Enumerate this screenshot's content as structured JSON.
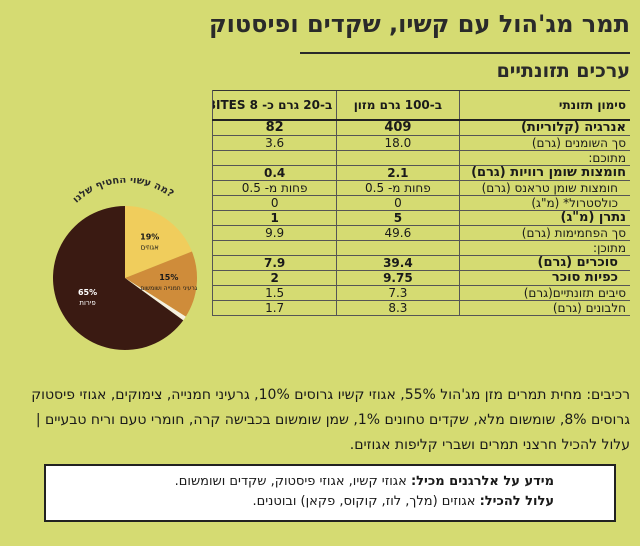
{
  "title": "תמר מג'הול עם קשיו, שקדים ופיסטוק",
  "subtitle": "ערכים תזונתיים",
  "table": {
    "headers": [
      "סימון תזונתי",
      "ב-100 גרם מזון",
      "ב-20 גרם כ- BITES 8"
    ],
    "rows": [
      {
        "label": "אנרגיה (קלוריות)",
        "v100": "409",
        "v20": "82",
        "style": "big b heavy"
      },
      {
        "label": "סך השומנים (גרם)",
        "v100": "18.0",
        "v20": "3.6",
        "style": ""
      },
      {
        "label": "מתוכם:",
        "v100": "",
        "v20": "",
        "style": "note"
      },
      {
        "label": "חומצות שומן רוויות (גרם)",
        "v100": "2.1",
        "v20": "0.4",
        "style": "b"
      },
      {
        "label": "חומצות שומן טראנס (גרם)",
        "v100": "פחות מ- 0.5",
        "v20": "פחות מ- 0.5",
        "style": "sub"
      },
      {
        "label": "כולסטרול* (מ\"ג)",
        "v100": "0",
        "v20": "0",
        "style": "sub"
      },
      {
        "label": "נתרן (מ\"ג)",
        "v100": "5",
        "v20": "1",
        "style": "b"
      },
      {
        "label": "סך הפחמימות (גרם)",
        "v100": "49.6",
        "v20": "9.9",
        "style": ""
      },
      {
        "label": "מתוכן:",
        "v100": "",
        "v20": "",
        "style": "note"
      },
      {
        "label": "סוכרים (גרם)",
        "v100": "39.4",
        "v20": "7.9",
        "style": "b sub"
      },
      {
        "label": "כפיות סוכר",
        "v100": "9.75",
        "v20": "2",
        "style": "b sub"
      },
      {
        "label": "סיבים תזונתיים(גרם)",
        "v100": "7.3",
        "v20": "1.5",
        "style": ""
      },
      {
        "label": "חלבונים (גרם)",
        "v100": "8.3",
        "v20": "1.7",
        "style": ""
      }
    ]
  },
  "pie": {
    "title": "?מה עשוי החטיף שלנו",
    "slices": [
      {
        "pct": 65,
        "label_pct": "65%",
        "label": "פירות",
        "color": "#3a1a12"
      },
      {
        "pct": 19,
        "label_pct": "19%",
        "label": "אגוזים",
        "color": "#f0cd5c"
      },
      {
        "pct": 15,
        "label_pct": "15%",
        "label": "גרעיני חמנייה ושומשום",
        "color": "#cf8c3a"
      },
      {
        "pct": 1,
        "label_pct": "",
        "label": "",
        "color": "#f5f0e0"
      }
    ]
  },
  "ingredients": "רכיבים: מחית תמרים מזן מג'הול 55%, אגוזי קשיו גרוסים 10%, גרעיני חמנייה, צימוקים, אגוזי פיסטוק גרוסים 8%, שומשום מלא, שקדים טחונים 1%, שמן שומשום בכבישה קרה, חומרי טעם וריח טבעיים | עלול להכיל חרצני תמרים ושברי קליפות אגוזים.",
  "allergens": {
    "contains_label": "מידע על אלרגנים מכיל:",
    "contains_text": "אגוזי קשיו, אגוזי פיסטוק, שקדים ושומשום.",
    "may_label": "עלול להכיל:",
    "may_text": "אגוזים (מלך, לוז, קוקוס, פקאן) ובוטנים."
  }
}
